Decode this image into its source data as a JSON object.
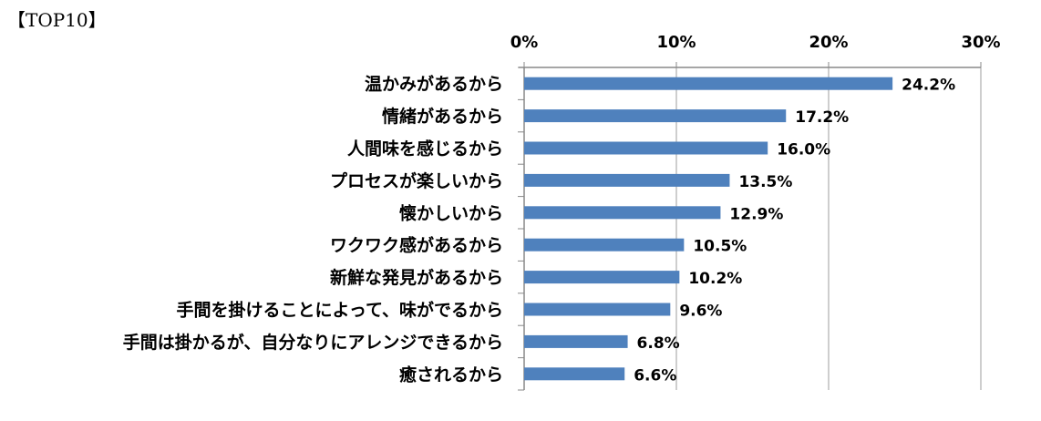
{
  "chart_data": {
    "type": "bar",
    "orientation": "horizontal",
    "title": "【TOP10】",
    "categories": [
      "温かみがあるから",
      "情緒があるから",
      "人間味を感じるから",
      "プロセスが楽しいから",
      "懐かしいから",
      "ワクワク感があるから",
      "新鮮な発見があるから",
      "手間を掛けることによって、味がでるから",
      "手間は掛かるが、自分なりにアレンジできるから",
      "癒されるから"
    ],
    "values": [
      24.2,
      17.2,
      16.0,
      13.5,
      12.9,
      10.5,
      10.2,
      9.6,
      6.8,
      6.6
    ],
    "data_labels": [
      "24.2%",
      "17.2%",
      "16.0%",
      "13.5%",
      "12.9%",
      "10.5%",
      "10.2%",
      "9.6%",
      "6.8%",
      "6.6%"
    ],
    "xlim": [
      0,
      30
    ],
    "xticks": [
      0,
      10,
      20,
      30
    ],
    "xtick_labels": [
      "0%",
      "10%",
      "20%",
      "30%"
    ],
    "axis_position": "top",
    "grid": true,
    "bar_color": "#4F81BD",
    "xlabel": "",
    "ylabel": ""
  }
}
